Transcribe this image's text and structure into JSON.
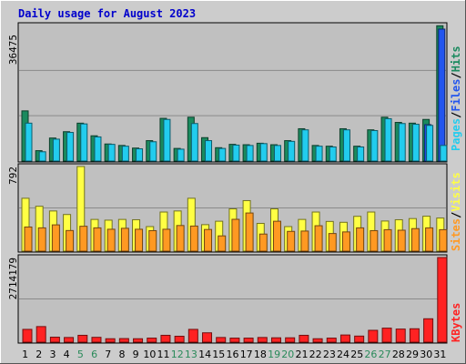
{
  "title": "Daily usage for August 2023",
  "colors": {
    "background": "#cccccc",
    "plot_bg": "#c0c0c0",
    "title": "#0000cc",
    "hits": "#1a8a5e",
    "files": "#2255ee",
    "pages": "#22ccee",
    "visits": "#ffff44",
    "sites": "#ff9922",
    "kbytes": "#ff2222",
    "weekend_label": "#2a8a5a",
    "weekday_label": "#000000"
  },
  "legend": {
    "top": {
      "pages": "Pages",
      "files": "Files",
      "hits": "Hits",
      "sep": "/"
    },
    "mid": {
      "sites": "Sites",
      "visits": "Visits",
      "sep": "/"
    },
    "bottom": {
      "kbytes": "KBytes"
    }
  },
  "chart_data": [
    {
      "type": "bar",
      "panel": "hits-files-pages",
      "categories": [
        "1",
        "2",
        "3",
        "4",
        "5",
        "6",
        "7",
        "8",
        "9",
        "10",
        "11",
        "12",
        "13",
        "14",
        "15",
        "16",
        "17",
        "18",
        "19",
        "20",
        "21",
        "22",
        "23",
        "24",
        "25",
        "26",
        "27",
        "28",
        "29",
        "30",
        "31"
      ],
      "ylim": [
        0,
        36475
      ],
      "ytick_label": "36475",
      "series": [
        {
          "name": "Hits",
          "values": [
            13500,
            2800,
            6200,
            7900,
            10200,
            6800,
            4600,
            4200,
            3500,
            5500,
            11500,
            3400,
            11800,
            6300,
            3600,
            4500,
            4400,
            4800,
            4400,
            5500,
            8700,
            4200,
            4000,
            8700,
            4000,
            8400,
            11800,
            10400,
            10200,
            11200,
            36400
          ]
        },
        {
          "name": "Files",
          "values": [
            0,
            0,
            0,
            0,
            0,
            0,
            0,
            0,
            0,
            0,
            0,
            0,
            0,
            0,
            0,
            0,
            0,
            0,
            0,
            0,
            0,
            0,
            0,
            0,
            0,
            0,
            0,
            0,
            0,
            9800,
            35500
          ]
        },
        {
          "name": "Pages",
          "values": [
            10200,
            2500,
            5900,
            7700,
            10000,
            6500,
            4500,
            4000,
            3300,
            5200,
            11200,
            3200,
            10100,
            5500,
            3400,
            4300,
            4200,
            4700,
            4200,
            5300,
            8400,
            4000,
            3800,
            8400,
            3800,
            8200,
            11400,
            10100,
            9900,
            9600,
            4200
          ]
        }
      ]
    },
    {
      "type": "bar",
      "panel": "visits-sites",
      "categories": [
        "1",
        "2",
        "3",
        "4",
        "5",
        "6",
        "7",
        "8",
        "9",
        "10",
        "11",
        "12",
        "13",
        "14",
        "15",
        "16",
        "17",
        "18",
        "19",
        "20",
        "21",
        "22",
        "23",
        "24",
        "25",
        "26",
        "27",
        "28",
        "29",
        "30",
        "31"
      ],
      "ylim": [
        0,
        792
      ],
      "ytick_label": "792",
      "series": [
        {
          "name": "Visits",
          "values": [
            495,
            420,
            376,
            343,
            792,
            297,
            290,
            297,
            294,
            230,
            366,
            376,
            495,
            248,
            280,
            396,
            473,
            260,
            396,
            230,
            297,
            366,
            278,
            270,
            326,
            366,
            282,
            294,
            305,
            327,
            310
          ]
        },
        {
          "name": "Sites",
          "values": [
            226,
            218,
            246,
            193,
            233,
            218,
            205,
            214,
            205,
            192,
            205,
            240,
            235,
            203,
            143,
            298,
            357,
            160,
            280,
            185,
            188,
            238,
            165,
            180,
            218,
            192,
            201,
            196,
            211,
            218,
            201
          ]
        }
      ]
    },
    {
      "type": "bar",
      "panel": "kbytes",
      "categories": [
        "1",
        "2",
        "3",
        "4",
        "5",
        "6",
        "7",
        "8",
        "9",
        "10",
        "11",
        "12",
        "13",
        "14",
        "15",
        "16",
        "17",
        "18",
        "19",
        "20",
        "21",
        "22",
        "23",
        "24",
        "25",
        "26",
        "27",
        "28",
        "29",
        "30",
        "31"
      ],
      "ylim": [
        0,
        2714179
      ],
      "ytick_label": "2714179",
      "series": [
        {
          "name": "KBytes",
          "values": [
            410000,
            500000,
            160000,
            150000,
            220000,
            155000,
            110000,
            115000,
            110000,
            130000,
            220000,
            190000,
            410000,
            300000,
            150000,
            130000,
            130000,
            150000,
            140000,
            140000,
            220000,
            110000,
            130000,
            230000,
            195000,
            380000,
            450000,
            420000,
            430000,
            750000,
            2714179
          ]
        }
      ]
    }
  ],
  "x_labels": [
    {
      "label": "1",
      "weekend": false
    },
    {
      "label": "2",
      "weekend": false
    },
    {
      "label": "3",
      "weekend": false
    },
    {
      "label": "4",
      "weekend": false
    },
    {
      "label": "5",
      "weekend": true
    },
    {
      "label": "6",
      "weekend": true
    },
    {
      "label": "7",
      "weekend": false
    },
    {
      "label": "8",
      "weekend": false
    },
    {
      "label": "9",
      "weekend": false
    },
    {
      "label": "10",
      "weekend": false
    },
    {
      "label": "11",
      "weekend": false
    },
    {
      "label": "12",
      "weekend": true
    },
    {
      "label": "13",
      "weekend": true
    },
    {
      "label": "14",
      "weekend": false
    },
    {
      "label": "15",
      "weekend": false
    },
    {
      "label": "16",
      "weekend": false
    },
    {
      "label": "17",
      "weekend": false
    },
    {
      "label": "18",
      "weekend": false
    },
    {
      "label": "19",
      "weekend": true
    },
    {
      "label": "20",
      "weekend": true
    },
    {
      "label": "21",
      "weekend": false
    },
    {
      "label": "22",
      "weekend": false
    },
    {
      "label": "23",
      "weekend": false
    },
    {
      "label": "24",
      "weekend": false
    },
    {
      "label": "25",
      "weekend": false
    },
    {
      "label": "26",
      "weekend": true
    },
    {
      "label": "27",
      "weekend": true
    },
    {
      "label": "28",
      "weekend": false
    },
    {
      "label": "29",
      "weekend": false
    },
    {
      "label": "30",
      "weekend": false
    },
    {
      "label": "31",
      "weekend": false
    }
  ]
}
